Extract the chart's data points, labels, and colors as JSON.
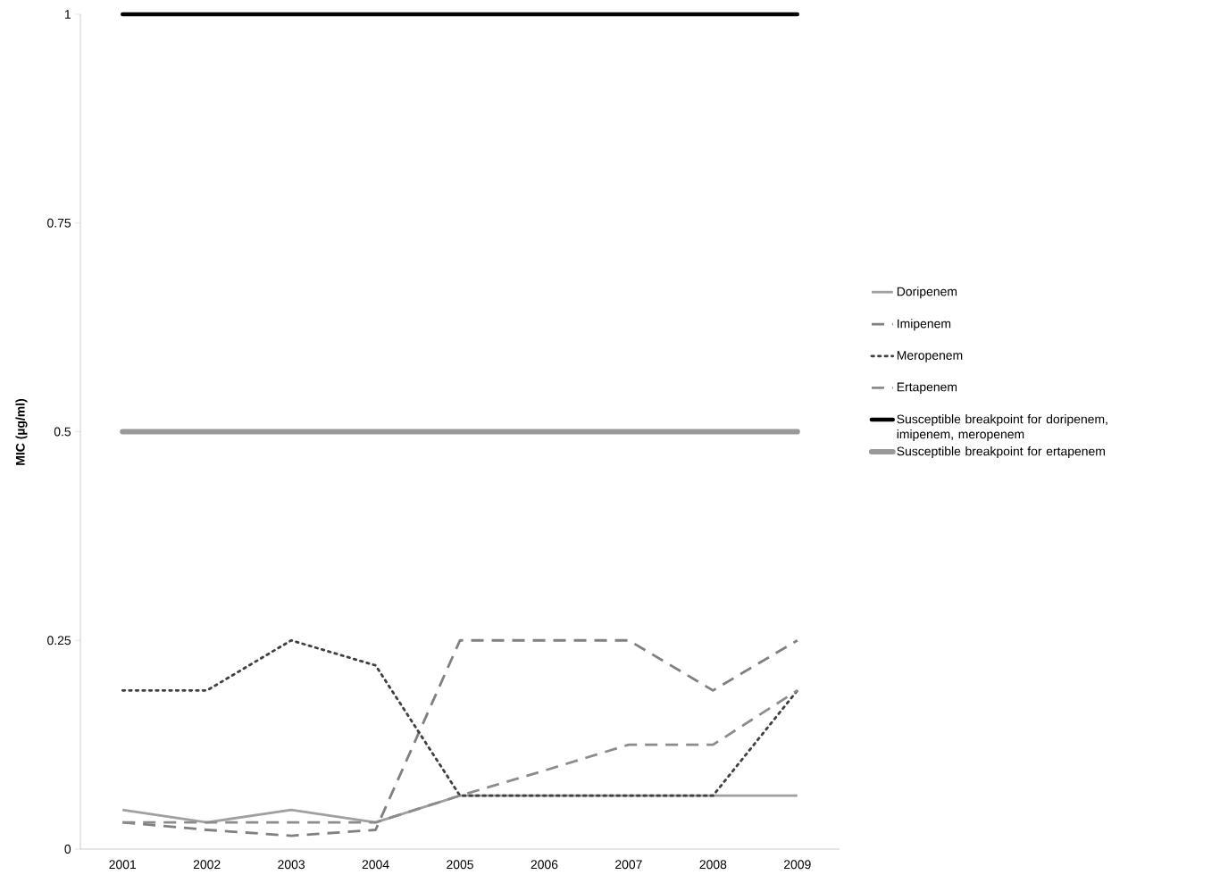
{
  "chart_data": {
    "type": "line",
    "ylabel": "MIC (µg/ml)",
    "categories": [
      "2001",
      "2002",
      "2003",
      "2004",
      "2005",
      "2006",
      "2007",
      "2008",
      "2009"
    ],
    "series": [
      {
        "name": "Doripenem",
        "color": "#a0a0a0",
        "line_style": "solid",
        "values": [
          0.047,
          0.032,
          0.047,
          0.032,
          0.064,
          0.064,
          0.064,
          0.064,
          0.064
        ]
      },
      {
        "name": "Imipenem",
        "color": "#808080",
        "line_style": "dashed",
        "values": [
          0.032,
          0.023,
          0.016,
          0.023,
          0.25,
          0.25,
          0.25,
          0.19,
          0.25
        ]
      },
      {
        "name": "Meropenem",
        "color": "#404040",
        "line_style": "dotted",
        "values": [
          0.19,
          0.19,
          0.25,
          0.22,
          0.064,
          0.064,
          0.064,
          0.064,
          0.19
        ]
      },
      {
        "name": "Ertapenem",
        "color": "#8c8c8c",
        "line_style": "dashed",
        "values": [
          0.032,
          0.032,
          0.032,
          0.032,
          0.064,
          0.094,
          0.125,
          0.125,
          0.19
        ]
      }
    ],
    "ref_lines": [
      {
        "axis": "y",
        "value": 1,
        "label": "Susceptible breakpoint for doripenem, imipenem, meropenem",
        "color": "#000000"
      },
      {
        "axis": "y",
        "value": 0.5,
        "label": "Susceptible breakpoint for ertapenem",
        "color": "#999999"
      }
    ],
    "ylim": [
      0,
      1
    ],
    "yticks": [
      0,
      0.25,
      0.5,
      0.75,
      1
    ],
    "grid": false,
    "legend": "right",
    "marker": "none"
  }
}
